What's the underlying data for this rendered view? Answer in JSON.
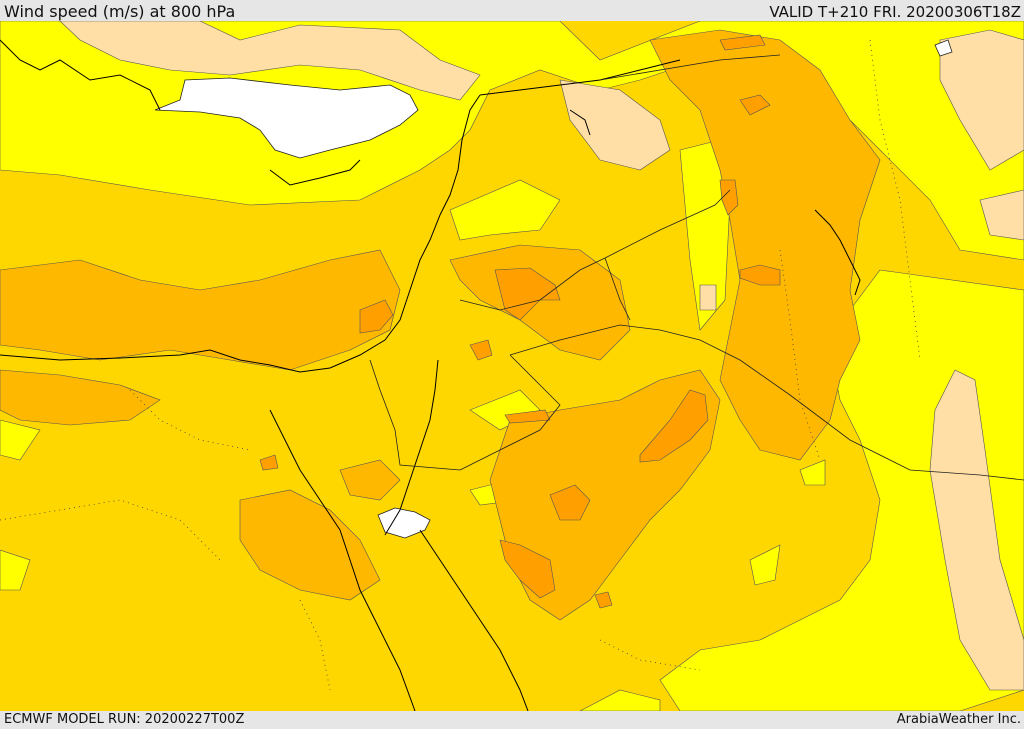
{
  "header": {
    "title": "Wind speed (m/s) at 800 hPa",
    "valid": "VALID T+210 FRI. 20200306T18Z"
  },
  "footer": {
    "model_run": "ECMWF MODEL RUN: 20200227T00Z",
    "credit": "ArabiaWeather Inc."
  },
  "map": {
    "variable": "wind speed",
    "level": "800 hPa",
    "colors": {
      "calm": "#ffffff",
      "light": "#ffdfa6",
      "low": "#ffff00",
      "moderate": "#ffd700",
      "fresh": "#ffb800",
      "strong": "#ffa000",
      "coastline": "#000000"
    }
  }
}
